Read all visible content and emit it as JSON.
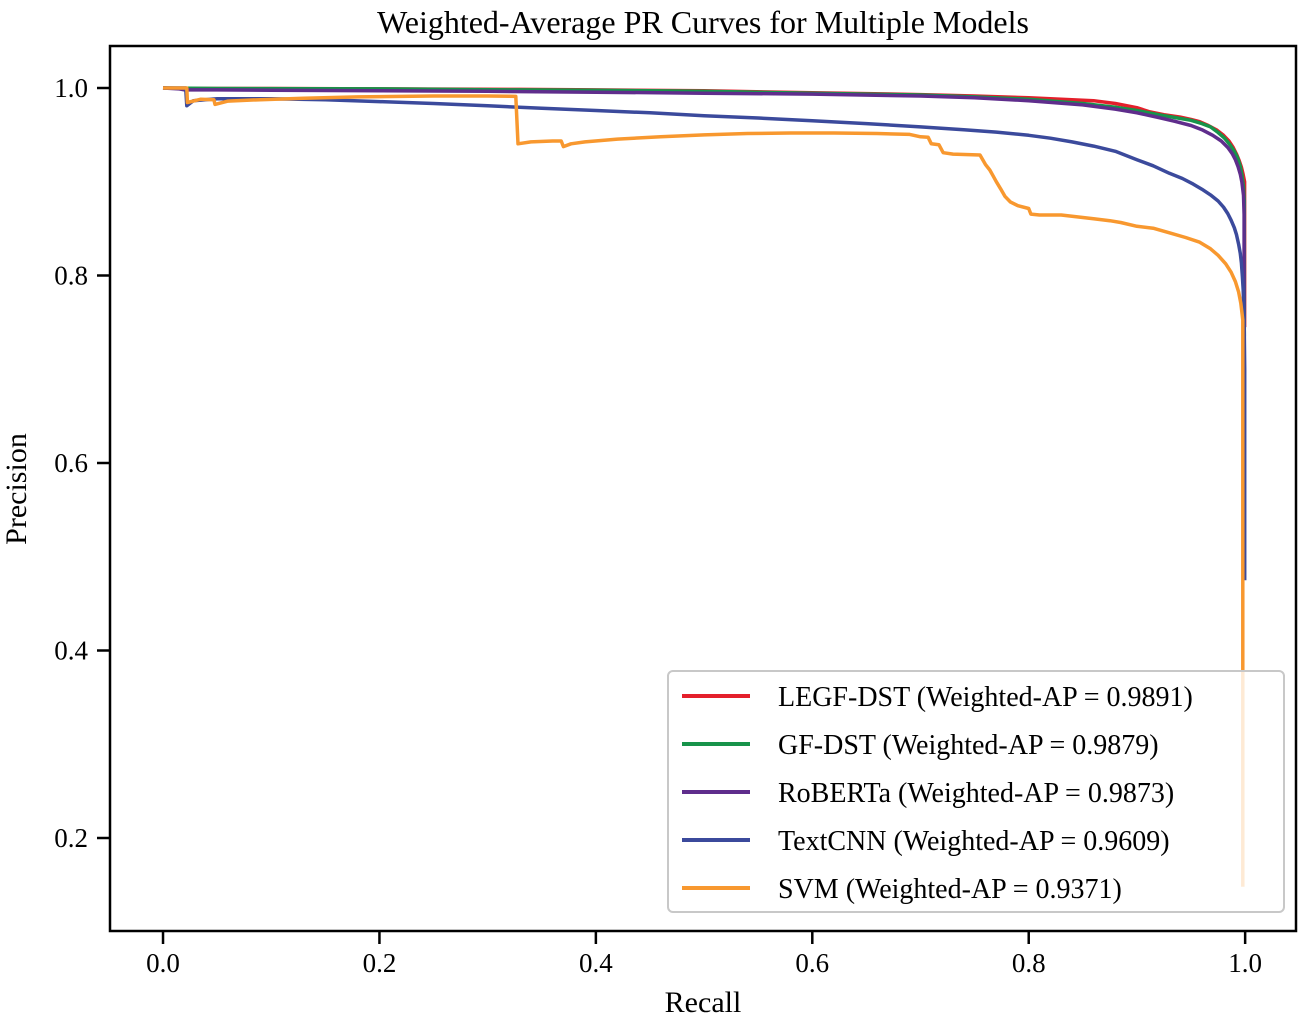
{
  "figure": {
    "title": "Weighted-Average PR Curves for Multiple Models",
    "xlabel": "Recall",
    "ylabel": "Precision"
  },
  "axes": {
    "x_tick_labels": [
      "0.0",
      "0.2",
      "0.4",
      "0.6",
      "0.8",
      "1.0"
    ],
    "y_tick_labels": [
      "0.2",
      "0.4",
      "0.6",
      "0.8",
      "1.0"
    ]
  },
  "legend": {
    "items": [
      {
        "label": "LEGF-DST (Weighted-AP = 0.9891)",
        "color": "#e41f2b"
      },
      {
        "label": "GF-DST (Weighted-AP = 0.9879)",
        "color": "#17934a"
      },
      {
        "label": "RoBERTa (Weighted-AP = 0.9873)",
        "color": "#5f2d8c"
      },
      {
        "label": "TextCNN (Weighted-AP = 0.9609)",
        "color": "#3b4a9c"
      },
      {
        "label": "SVM (Weighted-AP = 0.9371)",
        "color": "#f8982f"
      }
    ],
    "border_color": "#c8c8c8",
    "background_color": "#ffffff",
    "background_opacity": 0.8
  },
  "chart_data": {
    "type": "line",
    "title": "Weighted-Average PR Curves for Multiple Models",
    "xlabel": "Recall",
    "ylabel": "Precision",
    "xlim": [
      -0.049,
      1.047
    ],
    "ylim": [
      0.1008,
      1.0448
    ],
    "x_ticks": [
      0.0,
      0.2,
      0.4,
      0.6,
      0.8,
      1.0
    ],
    "y_ticks": [
      0.2,
      0.4,
      0.6,
      0.8,
      1.0
    ],
    "grid": false,
    "legend_position": "lower right",
    "series": [
      {
        "name": "LEGF-DST",
        "weighted_ap": 0.9891,
        "color": "#e41f2b",
        "points": [
          [
            0,
            1
          ],
          [
            0.02,
            0.9995
          ],
          [
            0.1,
            0.9995
          ],
          [
            0.2,
            0.999
          ],
          [
            0.33,
            0.9985
          ],
          [
            0.4,
            0.998
          ],
          [
            0.5,
            0.997
          ],
          [
            0.6,
            0.995
          ],
          [
            0.65,
            0.994
          ],
          [
            0.7,
            0.993
          ],
          [
            0.75,
            0.9915
          ],
          [
            0.8,
            0.9895
          ],
          [
            0.83,
            0.988
          ],
          [
            0.86,
            0.9865
          ],
          [
            0.88,
            0.9835
          ],
          [
            0.9,
            0.979
          ],
          [
            0.912,
            0.9745
          ],
          [
            0.925,
            0.9715
          ],
          [
            0.94,
            0.969
          ],
          [
            0.95,
            0.9665
          ],
          [
            0.958,
            0.964
          ],
          [
            0.966,
            0.96
          ],
          [
            0.974,
            0.955
          ],
          [
            0.98,
            0.9495
          ],
          [
            0.985,
            0.9435
          ],
          [
            0.989,
            0.9365
          ],
          [
            0.992,
            0.9295
          ],
          [
            0.9945,
            0.9225
          ],
          [
            0.9965,
            0.9155
          ],
          [
            0.998,
            0.9085
          ],
          [
            0.9995,
            0.9
          ],
          [
            0.9995,
            0.745
          ]
        ]
      },
      {
        "name": "GF-DST",
        "weighted_ap": 0.9879,
        "color": "#17934a",
        "points": [
          [
            0,
            1
          ],
          [
            0.05,
            0.9995
          ],
          [
            0.2,
            0.999
          ],
          [
            0.33,
            0.998
          ],
          [
            0.4,
            0.9975
          ],
          [
            0.5,
            0.9965
          ],
          [
            0.6,
            0.9945
          ],
          [
            0.7,
            0.9925
          ],
          [
            0.75,
            0.9905
          ],
          [
            0.8,
            0.988
          ],
          [
            0.85,
            0.9835
          ],
          [
            0.88,
            0.9795
          ],
          [
            0.9,
            0.976
          ],
          [
            0.92,
            0.9715
          ],
          [
            0.935,
            0.9685
          ],
          [
            0.95,
            0.9655
          ],
          [
            0.96,
            0.962
          ],
          [
            0.968,
            0.9585
          ],
          [
            0.975,
            0.9525
          ],
          [
            0.981,
            0.9465
          ],
          [
            0.986,
            0.9395
          ],
          [
            0.99,
            0.9325
          ],
          [
            0.993,
            0.9255
          ],
          [
            0.9955,
            0.9165
          ],
          [
            0.997,
            0.9075
          ],
          [
            0.9985,
            0.8945
          ],
          [
            0.9992,
            0.88
          ],
          [
            0.9992,
            0.735
          ]
        ]
      },
      {
        "name": "RoBERTa",
        "weighted_ap": 0.9873,
        "color": "#5f2d8c",
        "points": [
          [
            0,
            1
          ],
          [
            0.015,
            0.999
          ],
          [
            0.02,
            0.998
          ],
          [
            0.05,
            0.998
          ],
          [
            0.1,
            0.9975
          ],
          [
            0.2,
            0.997
          ],
          [
            0.3,
            0.9965
          ],
          [
            0.4,
            0.9955
          ],
          [
            0.5,
            0.9945
          ],
          [
            0.6,
            0.9935
          ],
          [
            0.7,
            0.9915
          ],
          [
            0.75,
            0.9895
          ],
          [
            0.8,
            0.9865
          ],
          [
            0.85,
            0.982
          ],
          [
            0.88,
            0.9775
          ],
          [
            0.9,
            0.9735
          ],
          [
            0.92,
            0.9685
          ],
          [
            0.935,
            0.9645
          ],
          [
            0.95,
            0.96
          ],
          [
            0.96,
            0.9555
          ],
          [
            0.97,
            0.9495
          ],
          [
            0.978,
            0.9435
          ],
          [
            0.984,
            0.9365
          ],
          [
            0.988,
            0.93
          ],
          [
            0.991,
            0.9235
          ],
          [
            0.9935,
            0.916
          ],
          [
            0.9955,
            0.908
          ],
          [
            0.997,
            0.8995
          ],
          [
            0.9985,
            0.8855
          ],
          [
            0.999,
            0.865
          ],
          [
            0.999,
            0.55
          ]
        ]
      },
      {
        "name": "TextCNN",
        "weighted_ap": 0.9609,
        "color": "#3b4a9c",
        "points": [
          [
            0,
            1
          ],
          [
            0.021,
            1
          ],
          [
            0.022,
            0.981
          ],
          [
            0.028,
            0.9865
          ],
          [
            0.05,
            0.9885
          ],
          [
            0.1,
            0.9885
          ],
          [
            0.15,
            0.9875
          ],
          [
            0.2,
            0.9855
          ],
          [
            0.25,
            0.9835
          ],
          [
            0.3,
            0.981
          ],
          [
            0.35,
            0.9785
          ],
          [
            0.4,
            0.976
          ],
          [
            0.45,
            0.9735
          ],
          [
            0.5,
            0.9705
          ],
          [
            0.55,
            0.968
          ],
          [
            0.6,
            0.965
          ],
          [
            0.65,
            0.962
          ],
          [
            0.7,
            0.9585
          ],
          [
            0.74,
            0.9555
          ],
          [
            0.77,
            0.953
          ],
          [
            0.8,
            0.9495
          ],
          [
            0.82,
            0.9465
          ],
          [
            0.84,
            0.9425
          ],
          [
            0.86,
            0.938
          ],
          [
            0.88,
            0.9325
          ],
          [
            0.9,
            0.9235
          ],
          [
            0.915,
            0.917
          ],
          [
            0.93,
            0.909
          ],
          [
            0.942,
            0.9035
          ],
          [
            0.952,
            0.8975
          ],
          [
            0.96,
            0.892
          ],
          [
            0.968,
            0.886
          ],
          [
            0.975,
            0.8795
          ],
          [
            0.98,
            0.873
          ],
          [
            0.984,
            0.866
          ],
          [
            0.987,
            0.859
          ],
          [
            0.99,
            0.851
          ],
          [
            0.992,
            0.8435
          ],
          [
            0.994,
            0.8335
          ],
          [
            0.9955,
            0.8235
          ],
          [
            0.9965,
            0.8135
          ],
          [
            0.9975,
            0.7985
          ],
          [
            0.9982,
            0.7845
          ],
          [
            0.9988,
            0.7645
          ],
          [
            0.9992,
            0.7395
          ],
          [
            0.9996,
            0.7
          ],
          [
            0.9996,
            0.475
          ]
        ]
      },
      {
        "name": "SVM",
        "weighted_ap": 0.9371,
        "color": "#f8982f",
        "points": [
          [
            0,
            1
          ],
          [
            0.022,
            1
          ],
          [
            0.0225,
            0.9845
          ],
          [
            0.035,
            0.988
          ],
          [
            0.047,
            0.9875
          ],
          [
            0.048,
            0.9825
          ],
          [
            0.06,
            0.986
          ],
          [
            0.09,
            0.9875
          ],
          [
            0.13,
            0.989
          ],
          [
            0.18,
            0.9905
          ],
          [
            0.25,
            0.9915
          ],
          [
            0.3,
            0.9915
          ],
          [
            0.32,
            0.9912
          ],
          [
            0.326,
            0.991
          ],
          [
            0.328,
            0.9405
          ],
          [
            0.34,
            0.9425
          ],
          [
            0.36,
            0.9435
          ],
          [
            0.368,
            0.9435
          ],
          [
            0.37,
            0.9375
          ],
          [
            0.377,
            0.9405
          ],
          [
            0.39,
            0.9425
          ],
          [
            0.42,
            0.9455
          ],
          [
            0.46,
            0.948
          ],
          [
            0.5,
            0.95
          ],
          [
            0.54,
            0.9515
          ],
          [
            0.58,
            0.952
          ],
          [
            0.62,
            0.952
          ],
          [
            0.66,
            0.9515
          ],
          [
            0.69,
            0.9505
          ],
          [
            0.7,
            0.948
          ],
          [
            0.707,
            0.9475
          ],
          [
            0.71,
            0.9405
          ],
          [
            0.717,
            0.9395
          ],
          [
            0.721,
            0.931
          ],
          [
            0.73,
            0.9295
          ],
          [
            0.755,
            0.9285
          ],
          [
            0.76,
            0.9185
          ],
          [
            0.764,
            0.9125
          ],
          [
            0.767,
            0.9065
          ],
          [
            0.77,
            0.9
          ],
          [
            0.774,
            0.8925
          ],
          [
            0.778,
            0.8845
          ],
          [
            0.783,
            0.8785
          ],
          [
            0.79,
            0.8745
          ],
          [
            0.8,
            0.8715
          ],
          [
            0.802,
            0.8655
          ],
          [
            0.81,
            0.8645
          ],
          [
            0.83,
            0.8645
          ],
          [
            0.845,
            0.8625
          ],
          [
            0.86,
            0.8605
          ],
          [
            0.875,
            0.8585
          ],
          [
            0.885,
            0.8565
          ],
          [
            0.9,
            0.8525
          ],
          [
            0.915,
            0.8505
          ],
          [
            0.93,
            0.8455
          ],
          [
            0.945,
            0.8405
          ],
          [
            0.958,
            0.8355
          ],
          [
            0.968,
            0.8285
          ],
          [
            0.975,
            0.8215
          ],
          [
            0.982,
            0.8125
          ],
          [
            0.987,
            0.8035
          ],
          [
            0.991,
            0.7935
          ],
          [
            0.994,
            0.7825
          ],
          [
            0.996,
            0.7705
          ],
          [
            0.9972,
            0.759
          ],
          [
            0.9978,
            0.7525
          ],
          [
            0.9978,
            0.148
          ]
        ]
      }
    ]
  }
}
